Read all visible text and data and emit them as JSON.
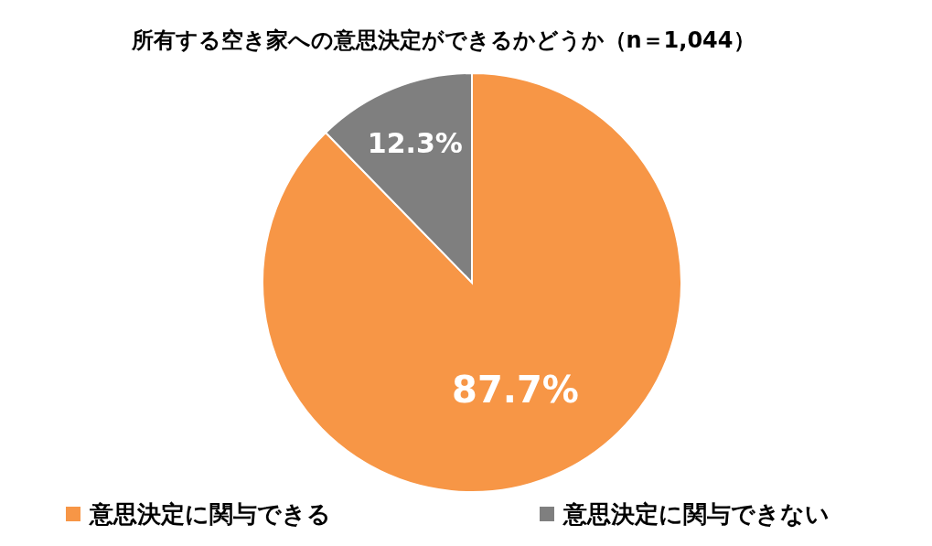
{
  "chart_data": {
    "type": "pie",
    "title": "所有する空き家への意思決定ができるかどうか（n＝1,044）",
    "categories": [
      "意思決定に関与できる",
      "意思決定に関与できない"
    ],
    "values": [
      87.7,
      12.3
    ],
    "colors": [
      "#f79646",
      "#7f7f7f"
    ],
    "value_labels": [
      "87.7%",
      "12.3%"
    ],
    "legend": "bottom"
  }
}
